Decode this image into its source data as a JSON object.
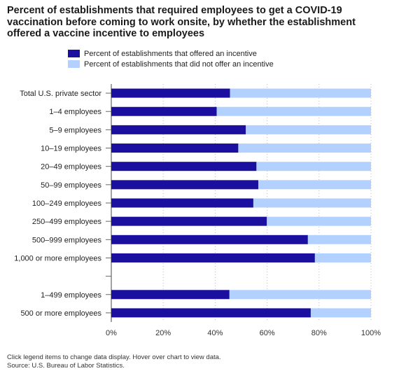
{
  "chart_data": {
    "type": "bar",
    "orientation": "horizontal",
    "stacked": true,
    "title": "Percent of establishments that required employees to get a COVID-19 vaccination before coming to work onsite, by whether the establishment offered a vaccine incentive to employees",
    "categories": [
      "Total U.S. private sector",
      "1–4 employees",
      "5–9 employees",
      "10–19 employees",
      "20–49 employees",
      "50–99 employees",
      "100–249 employees",
      "250–499 employees",
      "500–999 employees",
      "1,000 or more employees",
      "",
      "1–499 employees",
      "500 or more employees"
    ],
    "series": [
      {
        "name": "Percent of establishments that offered an incentive",
        "color": "#1a0f9e",
        "values": [
          45.7,
          40.6,
          51.8,
          48.9,
          55.9,
          56.6,
          54.7,
          59.9,
          75.7,
          78.4,
          null,
          45.5,
          76.8
        ]
      },
      {
        "name": "Percent of establishments that did not offer an incentive",
        "color": "#b3d1ff",
        "values": [
          54.3,
          59.4,
          48.2,
          51.1,
          44.1,
          43.4,
          45.3,
          40.1,
          24.3,
          21.6,
          null,
          54.5,
          23.2
        ]
      }
    ],
    "xlim": [
      0,
      100
    ],
    "xticks": [
      "0%",
      "20%",
      "40%",
      "60%",
      "80%",
      "100%"
    ],
    "grid": true,
    "legend_position": "top-left"
  },
  "footer": {
    "note": "Click legend items to change data display. Hover over chart to view data.",
    "source": "Source: U.S. Bureau of Labor Statistics."
  }
}
